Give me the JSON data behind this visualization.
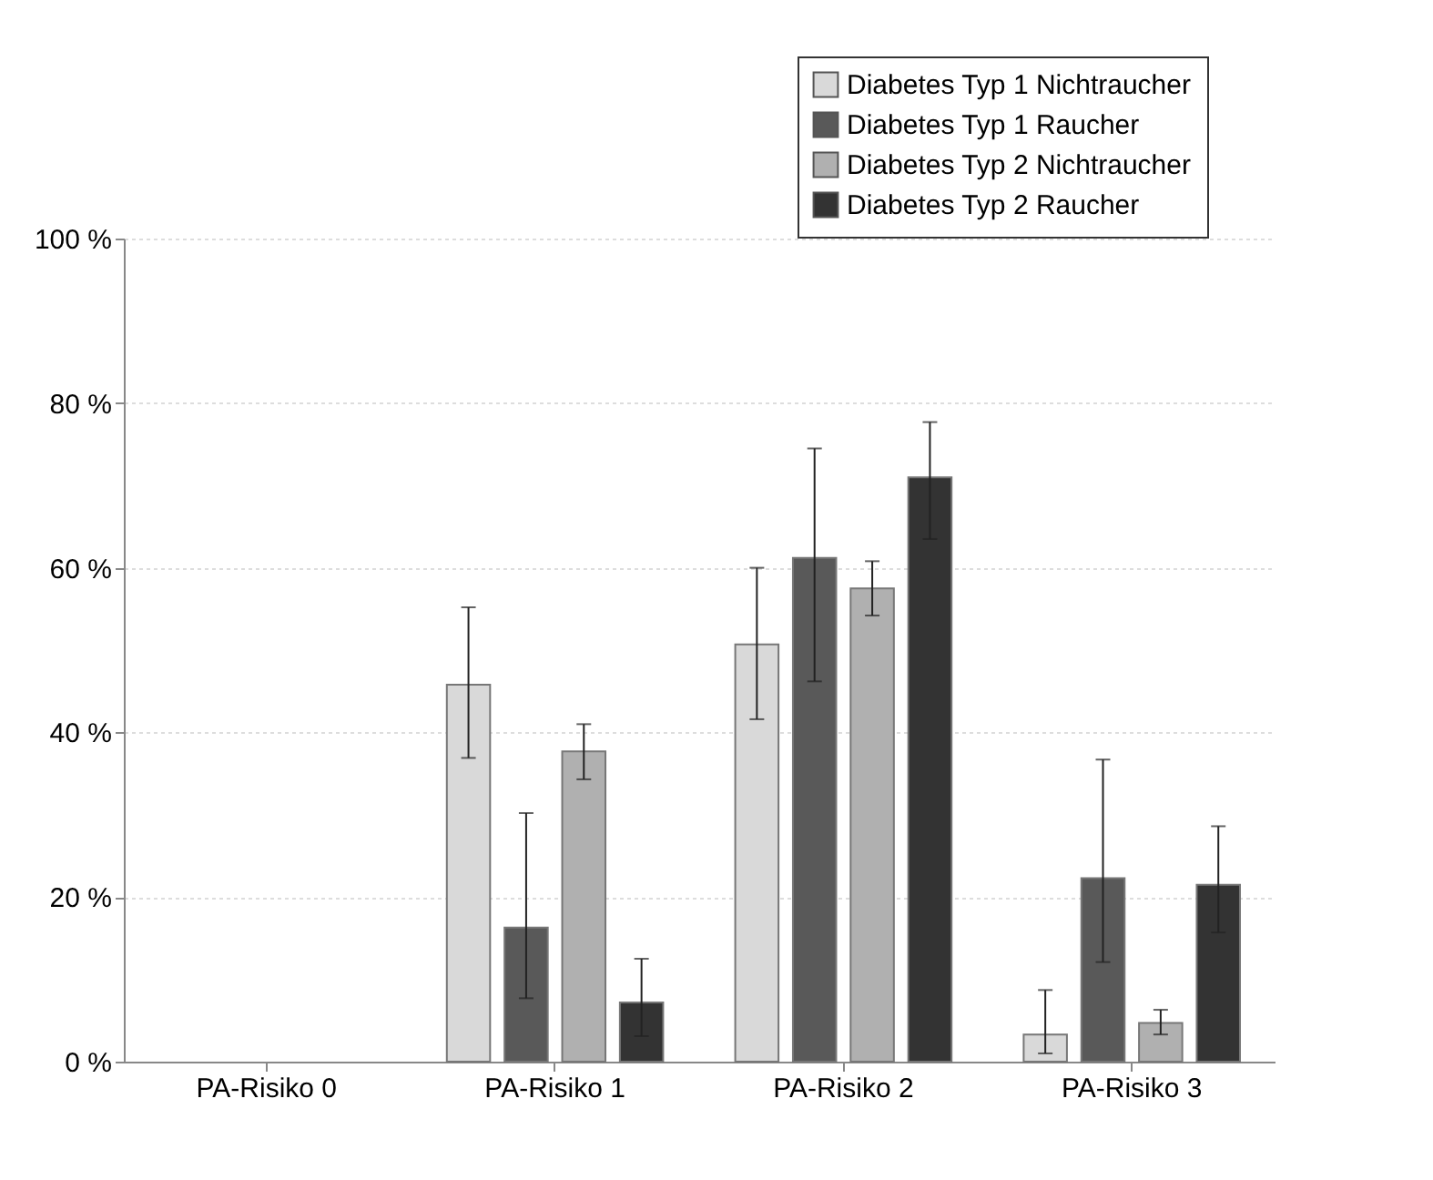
{
  "chart_data": {
    "type": "bar",
    "categories": [
      "PA-Risiko 0",
      "PA-Risiko 1",
      "PA-Risiko 2",
      "PA-Risiko 3"
    ],
    "series": [
      {
        "name": "Diabetes Typ 1 Nichtraucher",
        "color": "#d9d9d9",
        "values": [
          null,
          45.8,
          50.7,
          3.3
        ],
        "errors": [
          null,
          [
            36.9,
            55.2
          ],
          [
            41.6,
            60.0
          ],
          [
            1.0,
            8.7
          ]
        ]
      },
      {
        "name": "Diabetes Typ 1 Raucher",
        "color": "#595959",
        "values": [
          null,
          16.3,
          61.2,
          22.3
        ],
        "errors": [
          null,
          [
            7.7,
            30.2
          ],
          [
            46.2,
            74.5
          ],
          [
            12.1,
            36.7
          ]
        ]
      },
      {
        "name": "Diabetes Typ 2 Nichtraucher",
        "color": "#b0b0b0",
        "values": [
          null,
          37.7,
          57.5,
          4.7
        ],
        "errors": [
          null,
          [
            34.3,
            41.0
          ],
          [
            54.2,
            60.8
          ],
          [
            3.3,
            6.3
          ]
        ]
      },
      {
        "name": "Diabetes Typ 2 Raucher",
        "color": "#333333",
        "values": [
          null,
          7.2,
          71.0,
          21.5
        ],
        "errors": [
          null,
          [
            3.1,
            12.5
          ],
          [
            63.5,
            77.7
          ],
          [
            15.7,
            28.6
          ]
        ]
      }
    ],
    "ylim": [
      0,
      100
    ],
    "yticks": [
      {
        "value": 0,
        "label": "0 %"
      },
      {
        "value": 20,
        "label": "20 %"
      },
      {
        "value": 40,
        "label": "40 %"
      },
      {
        "value": 60,
        "label": "60 %"
      },
      {
        "value": 80,
        "label": "80 %"
      },
      {
        "value": 100,
        "label": "100 %"
      }
    ],
    "grid": "y",
    "legend": "top right"
  }
}
